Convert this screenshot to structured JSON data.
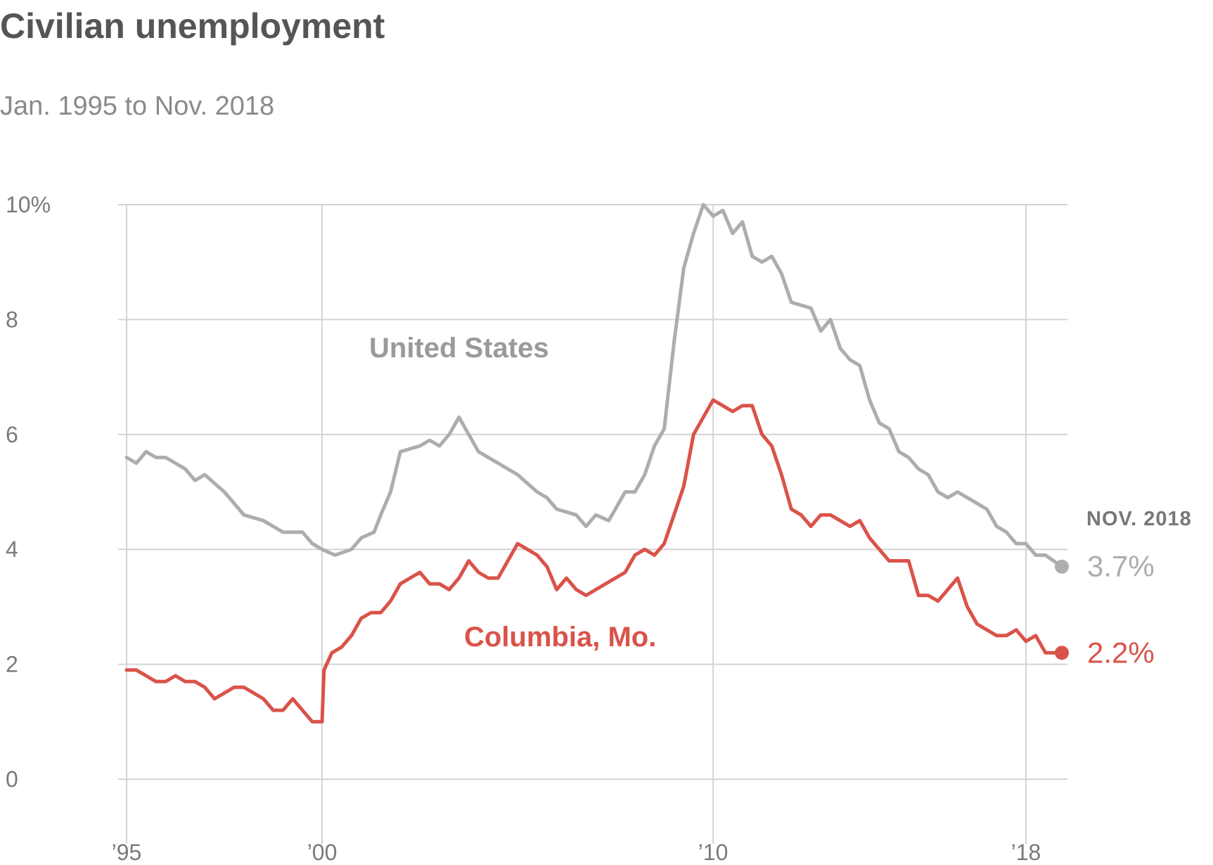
{
  "chart_data": {
    "type": "line",
    "title": "Civilian unemployment",
    "subtitle": "Jan. 1995 to Nov. 2018",
    "xlim": [
      1995.0,
      2018.917
    ],
    "ylim": [
      0,
      10
    ],
    "y_ticks": [
      0,
      2,
      4,
      6,
      8,
      10
    ],
    "y_tick_labels": [
      "0",
      "2",
      "4",
      "6",
      "8",
      "10%"
    ],
    "x_ticks": [
      1995,
      2000,
      2010,
      2018
    ],
    "x_tick_labels": [
      "’95",
      "’00",
      "’10",
      "’18"
    ],
    "grid": true,
    "end_annotation": {
      "date_label": "NOV. 2018"
    },
    "series": [
      {
        "name": "United States",
        "color": "#adadad",
        "end_label": "3.7%",
        "points": [
          [
            1995.0,
            5.6
          ],
          [
            1995.25,
            5.5
          ],
          [
            1995.5,
            5.7
          ],
          [
            1995.75,
            5.6
          ],
          [
            1996.0,
            5.6
          ],
          [
            1996.5,
            5.4
          ],
          [
            1996.75,
            5.2
          ],
          [
            1997.0,
            5.3
          ],
          [
            1997.5,
            5.0
          ],
          [
            1997.75,
            4.8
          ],
          [
            1998.0,
            4.6
          ],
          [
            1998.5,
            4.5
          ],
          [
            1998.75,
            4.4
          ],
          [
            1999.0,
            4.3
          ],
          [
            1999.5,
            4.3
          ],
          [
            1999.75,
            4.1
          ],
          [
            2000.0,
            4.0
          ],
          [
            2000.33,
            3.9
          ],
          [
            2000.75,
            4.0
          ],
          [
            2001.0,
            4.2
          ],
          [
            2001.33,
            4.3
          ],
          [
            2001.5,
            4.6
          ],
          [
            2001.75,
            5.0
          ],
          [
            2002.0,
            5.7
          ],
          [
            2002.5,
            5.8
          ],
          [
            2002.75,
            5.9
          ],
          [
            2003.0,
            5.8
          ],
          [
            2003.25,
            6.0
          ],
          [
            2003.5,
            6.3
          ],
          [
            2003.75,
            6.0
          ],
          [
            2004.0,
            5.7
          ],
          [
            2004.5,
            5.5
          ],
          [
            2004.75,
            5.4
          ],
          [
            2005.0,
            5.3
          ],
          [
            2005.5,
            5.0
          ],
          [
            2005.75,
            4.9
          ],
          [
            2006.0,
            4.7
          ],
          [
            2006.5,
            4.6
          ],
          [
            2006.75,
            4.4
          ],
          [
            2007.0,
            4.6
          ],
          [
            2007.33,
            4.5
          ],
          [
            2007.5,
            4.7
          ],
          [
            2007.75,
            5.0
          ],
          [
            2008.0,
            5.0
          ],
          [
            2008.25,
            5.3
          ],
          [
            2008.5,
            5.8
          ],
          [
            2008.75,
            6.1
          ],
          [
            2009.0,
            7.6
          ],
          [
            2009.25,
            8.9
          ],
          [
            2009.5,
            9.5
          ],
          [
            2009.75,
            10.0
          ],
          [
            2010.0,
            9.8
          ],
          [
            2010.25,
            9.9
          ],
          [
            2010.5,
            9.5
          ],
          [
            2010.75,
            9.7
          ],
          [
            2011.0,
            9.1
          ],
          [
            2011.25,
            9.0
          ],
          [
            2011.5,
            9.1
          ],
          [
            2011.75,
            8.8
          ],
          [
            2012.0,
            8.3
          ],
          [
            2012.5,
            8.2
          ],
          [
            2012.75,
            7.8
          ],
          [
            2013.0,
            8.0
          ],
          [
            2013.25,
            7.5
          ],
          [
            2013.5,
            7.3
          ],
          [
            2013.75,
            7.2
          ],
          [
            2014.0,
            6.6
          ],
          [
            2014.25,
            6.2
          ],
          [
            2014.5,
            6.1
          ],
          [
            2014.75,
            5.7
          ],
          [
            2015.0,
            5.6
          ],
          [
            2015.25,
            5.4
          ],
          [
            2015.5,
            5.3
          ],
          [
            2015.75,
            5.0
          ],
          [
            2016.0,
            4.9
          ],
          [
            2016.25,
            5.0
          ],
          [
            2016.5,
            4.9
          ],
          [
            2016.75,
            4.8
          ],
          [
            2017.0,
            4.7
          ],
          [
            2017.25,
            4.4
          ],
          [
            2017.5,
            4.3
          ],
          [
            2017.75,
            4.1
          ],
          [
            2018.0,
            4.1
          ],
          [
            2018.25,
            3.9
          ],
          [
            2018.5,
            3.9
          ],
          [
            2018.917,
            3.7
          ]
        ]
      },
      {
        "name": "Columbia, Mo.",
        "color": "#d9534a",
        "end_label": "2.2%",
        "points": [
          [
            1995.0,
            1.9
          ],
          [
            1995.25,
            1.9
          ],
          [
            1995.5,
            1.8
          ],
          [
            1995.75,
            1.7
          ],
          [
            1996.0,
            1.7
          ],
          [
            1996.25,
            1.8
          ],
          [
            1996.5,
            1.7
          ],
          [
            1996.75,
            1.7
          ],
          [
            1997.0,
            1.6
          ],
          [
            1997.25,
            1.4
          ],
          [
            1997.5,
            1.5
          ],
          [
            1997.75,
            1.6
          ],
          [
            1998.0,
            1.6
          ],
          [
            1998.25,
            1.5
          ],
          [
            1998.5,
            1.4
          ],
          [
            1998.75,
            1.2
          ],
          [
            1999.0,
            1.2
          ],
          [
            1999.25,
            1.4
          ],
          [
            1999.5,
            1.2
          ],
          [
            1999.75,
            1.0
          ],
          [
            2000.0,
            1.0
          ],
          [
            2000.05,
            1.9
          ],
          [
            2000.25,
            2.2
          ],
          [
            2000.5,
            2.3
          ],
          [
            2000.75,
            2.5
          ],
          [
            2001.0,
            2.8
          ],
          [
            2001.25,
            2.9
          ],
          [
            2001.5,
            2.9
          ],
          [
            2001.75,
            3.1
          ],
          [
            2002.0,
            3.4
          ],
          [
            2002.25,
            3.5
          ],
          [
            2002.5,
            3.6
          ],
          [
            2002.75,
            3.4
          ],
          [
            2003.0,
            3.4
          ],
          [
            2003.25,
            3.3
          ],
          [
            2003.5,
            3.5
          ],
          [
            2003.75,
            3.8
          ],
          [
            2004.0,
            3.6
          ],
          [
            2004.25,
            3.5
          ],
          [
            2004.5,
            3.5
          ],
          [
            2004.75,
            3.8
          ],
          [
            2005.0,
            4.1
          ],
          [
            2005.25,
            4.0
          ],
          [
            2005.5,
            3.9
          ],
          [
            2005.75,
            3.7
          ],
          [
            2006.0,
            3.3
          ],
          [
            2006.25,
            3.5
          ],
          [
            2006.5,
            3.3
          ],
          [
            2006.75,
            3.2
          ],
          [
            2007.0,
            3.3
          ],
          [
            2007.25,
            3.4
          ],
          [
            2007.5,
            3.5
          ],
          [
            2007.75,
            3.6
          ],
          [
            2008.0,
            3.9
          ],
          [
            2008.25,
            4.0
          ],
          [
            2008.5,
            3.9
          ],
          [
            2008.75,
            4.1
          ],
          [
            2009.0,
            4.6
          ],
          [
            2009.25,
            5.1
          ],
          [
            2009.5,
            6.0
          ],
          [
            2009.75,
            6.3
          ],
          [
            2010.0,
            6.6
          ],
          [
            2010.25,
            6.5
          ],
          [
            2010.5,
            6.4
          ],
          [
            2010.75,
            6.5
          ],
          [
            2011.0,
            6.5
          ],
          [
            2011.25,
            6.0
          ],
          [
            2011.5,
            5.8
          ],
          [
            2011.75,
            5.3
          ],
          [
            2012.0,
            4.7
          ],
          [
            2012.25,
            4.6
          ],
          [
            2012.5,
            4.4
          ],
          [
            2012.75,
            4.6
          ],
          [
            2013.0,
            4.6
          ],
          [
            2013.25,
            4.5
          ],
          [
            2013.5,
            4.4
          ],
          [
            2013.75,
            4.5
          ],
          [
            2014.0,
            4.2
          ],
          [
            2014.25,
            4.0
          ],
          [
            2014.5,
            3.8
          ],
          [
            2014.75,
            3.8
          ],
          [
            2015.0,
            3.8
          ],
          [
            2015.25,
            3.2
          ],
          [
            2015.5,
            3.2
          ],
          [
            2015.75,
            3.1
          ],
          [
            2016.0,
            3.3
          ],
          [
            2016.25,
            3.5
          ],
          [
            2016.5,
            3.0
          ],
          [
            2016.75,
            2.7
          ],
          [
            2017.0,
            2.6
          ],
          [
            2017.25,
            2.5
          ],
          [
            2017.5,
            2.5
          ],
          [
            2017.75,
            2.6
          ],
          [
            2018.0,
            2.4
          ],
          [
            2018.25,
            2.5
          ],
          [
            2018.5,
            2.2
          ],
          [
            2018.917,
            2.2
          ]
        ]
      }
    ]
  }
}
